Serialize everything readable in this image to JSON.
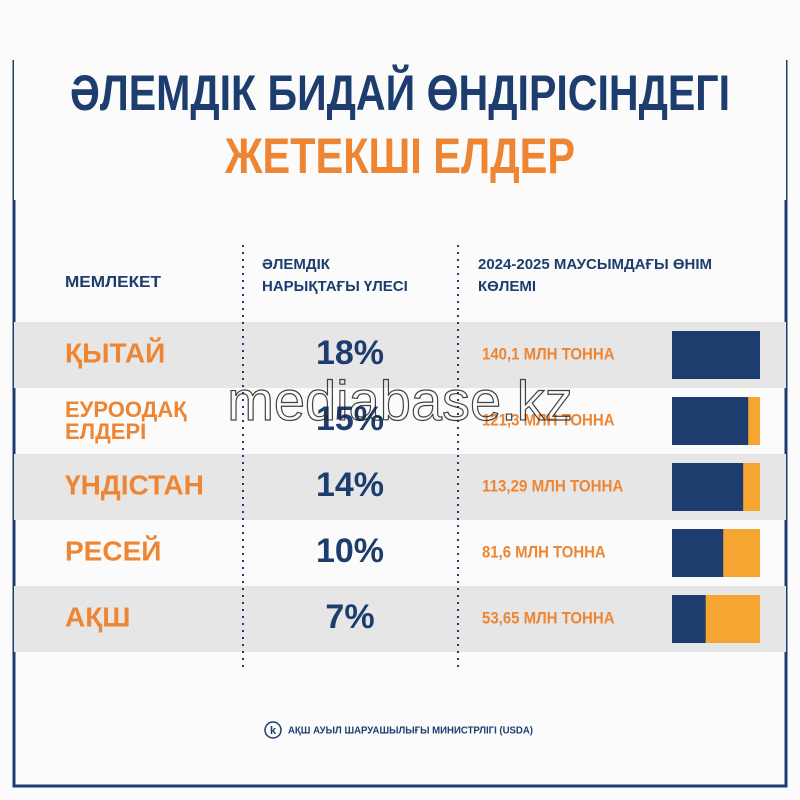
{
  "header": {
    "title_line1": "ӘЛЕМДІК БИДАЙ ӨНДІРІСІНДЕГІ",
    "title_line2": "ЖЕТЕКШІ ЕЛДЕР"
  },
  "table": {
    "columns": [
      "МЕМЛЕКЕТ",
      "ӘЛЕМДІК НАРЫҚТАҒЫ ҮЛЕСІ",
      "2024-2025 МАУСЫМДАҒЫ ӨНІМ КӨЛЕМІ"
    ],
    "rows": [
      {
        "country": "ҚЫТАЙ",
        "share": "18%",
        "volume": {
          "value": 140.1,
          "label": "140,1 МЛН ТОННА"
        }
      },
      {
        "country": "ЕУРООДАҚ ЕЛДЕРІ",
        "share": "15%",
        "volume": {
          "value": 121.3,
          "label": "121,3 МЛН ТОННА"
        }
      },
      {
        "country": "ҮНДІСТАН",
        "share": "14%",
        "volume": {
          "value": 113.29,
          "label": "113,29 МЛН ТОННА"
        }
      },
      {
        "country": "РЕСЕЙ",
        "share": "10%",
        "volume": {
          "value": 81.6,
          "label": "81,6 МЛН ТОННА"
        }
      },
      {
        "country": "АҚШ",
        "share": "7%",
        "volume": {
          "value": 53.65,
          "label": "53,65 МЛН ТОННА"
        }
      }
    ]
  },
  "source": "АҚШ АУЫЛ ШАРУАШЫЛЫҒЫ МИНИСТРЛІГІ (USDA)",
  "logo": "k",
  "watermark": "mediabase.kz"
}
